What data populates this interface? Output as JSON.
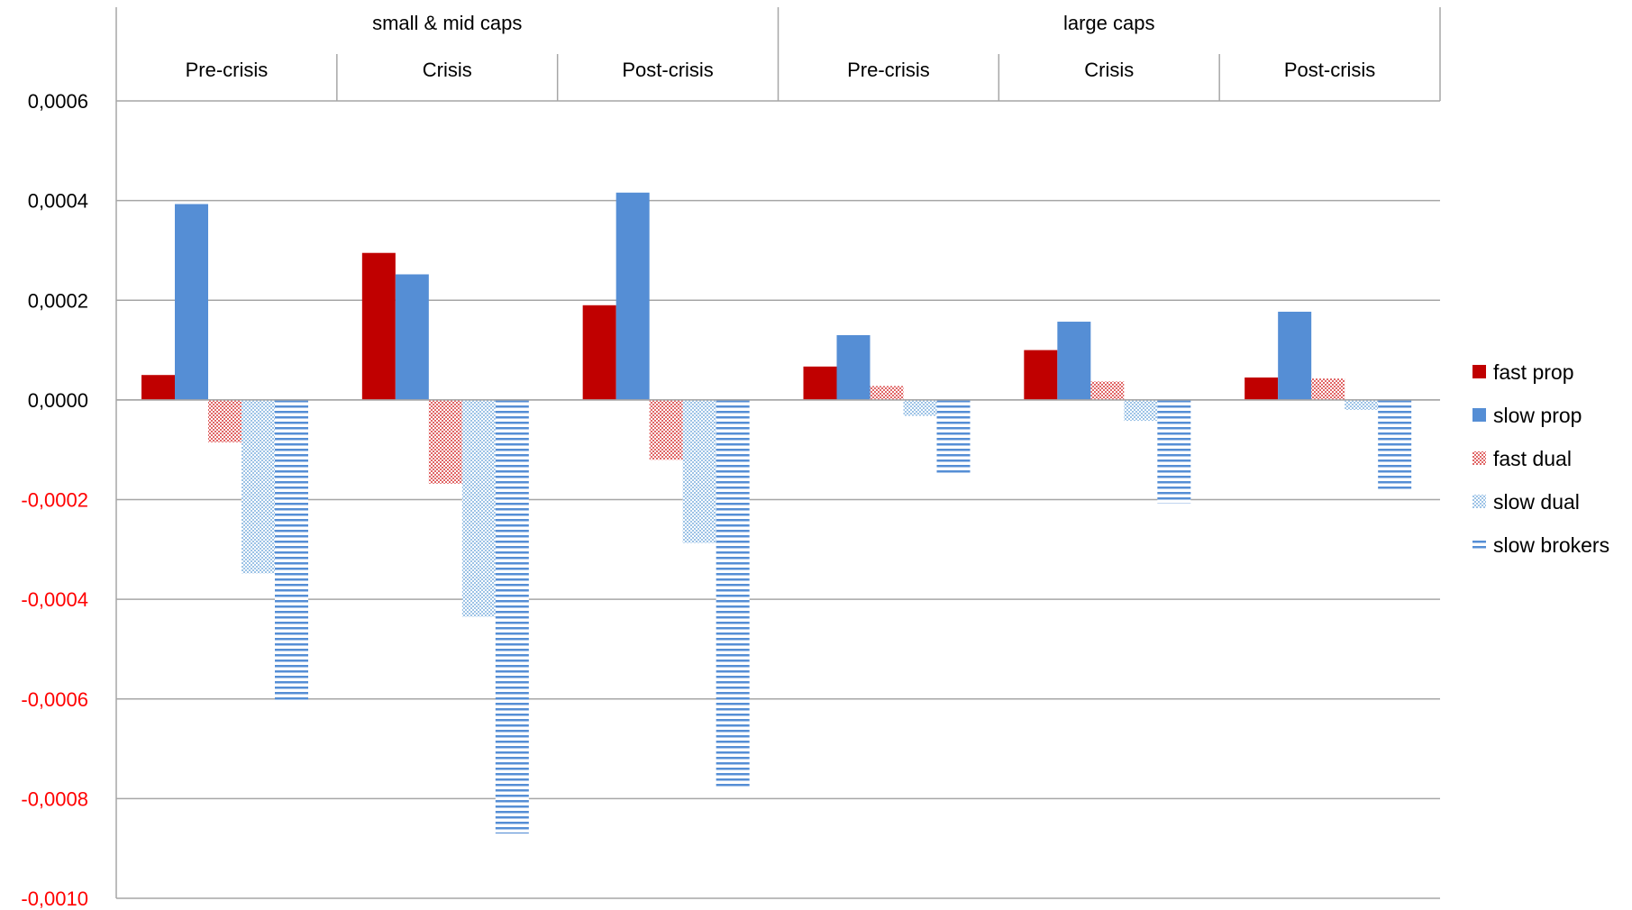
{
  "chart_data": {
    "type": "bar",
    "groups": [
      {
        "label": "small & mid caps",
        "periods": [
          "Pre-crisis",
          "Crisis",
          "Post-crisis"
        ]
      },
      {
        "label": "large caps",
        "periods": [
          "Pre-crisis",
          "Crisis",
          "Post-crisis"
        ]
      }
    ],
    "categories": [
      "small & mid caps / Pre-crisis",
      "small & mid caps / Crisis",
      "small & mid caps / Post-crisis",
      "large caps / Pre-crisis",
      "large caps / Crisis",
      "large caps / Post-crisis"
    ],
    "series": [
      {
        "name": "fast prop",
        "color": "#C00000",
        "pattern": "solid",
        "values": [
          5e-05,
          0.000295,
          0.00019,
          6.7e-05,
          0.0001,
          4.5e-05
        ]
      },
      {
        "name": "slow prop",
        "color": "#558ED5",
        "pattern": "solid",
        "values": [
          0.000393,
          0.000252,
          0.000416,
          0.00013,
          0.000157,
          0.000177
        ]
      },
      {
        "name": "fast dual",
        "color": "#E06666",
        "pattern": "dots",
        "values": [
          -8.5e-05,
          -0.000168,
          -0.00012,
          2.8e-05,
          3.7e-05,
          4.3e-05
        ]
      },
      {
        "name": "slow dual",
        "color": "#8DB4E2",
        "pattern": "dots",
        "values": [
          -0.000348,
          -0.000435,
          -0.000287,
          -3.2e-05,
          -4.2e-05,
          -2e-05
        ]
      },
      {
        "name": "slow brokers",
        "color": "#558ED5",
        "pattern": "horizontal",
        "values": [
          -0.000605,
          -0.00087,
          -0.000778,
          -0.00015,
          -0.000207,
          -0.000182
        ]
      }
    ],
    "yticks": [
      "0,0006",
      "0,0004",
      "0,0002",
      "0,0000",
      "-0,0002",
      "-0,0004",
      "-0,0006",
      "-0,0008",
      "-0,0010"
    ],
    "tick_colors": {
      "positive": "#000000",
      "negative": "#FF0000"
    },
    "ylim": [
      -0.001,
      0.0006
    ],
    "grid": true,
    "legend": "right"
  }
}
